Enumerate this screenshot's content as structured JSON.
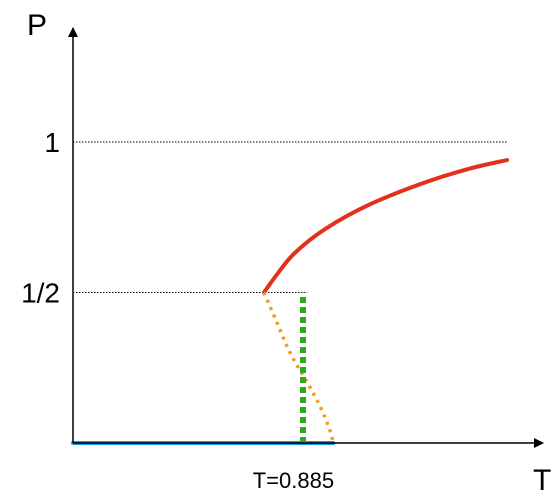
{
  "chart_data": {
    "type": "line",
    "title": "",
    "xlabel": "T",
    "ylabel": "P",
    "xlim": [
      0,
      1.1
    ],
    "ylim": [
      0,
      1.05
    ],
    "grid": false,
    "y_ticks": [
      {
        "value": 1,
        "label": "1"
      },
      {
        "value": 0.5,
        "label": "1/2"
      }
    ],
    "annotations": [
      {
        "text": "T=0.885",
        "x": 0.6
      }
    ],
    "reference_lines": [
      {
        "y": 1,
        "x_end": 1.0,
        "style": "dotted",
        "color": "#000000"
      },
      {
        "y": 0.5,
        "x_end": 0.54,
        "style": "dotted",
        "color": "#000000"
      }
    ],
    "series": [
      {
        "style": "solid",
        "color": "#e3301c",
        "x": [
          0.44,
          0.47,
          0.51,
          0.58,
          0.68,
          0.8,
          0.91,
          1.0
        ],
        "y": [
          0.5,
          0.56,
          0.63,
          0.71,
          0.79,
          0.86,
          0.91,
          0.94
        ]
      },
      {
        "style": "dotted",
        "color": "#f39a1f",
        "x": [
          0.44,
          0.47,
          0.5,
          0.54,
          0.57,
          0.59,
          0.6
        ],
        "y": [
          0.5,
          0.4,
          0.3,
          0.2,
          0.12,
          0.05,
          0.0
        ]
      },
      {
        "style": "dashed",
        "color": "#2ea81c",
        "x": [
          0.53,
          0.53
        ],
        "y": [
          0.0,
          0.5
        ]
      },
      {
        "style": "solid",
        "color": "#1b9be0",
        "x": [
          0.0,
          0.6
        ],
        "y": [
          0.0,
          0.0
        ]
      }
    ]
  }
}
